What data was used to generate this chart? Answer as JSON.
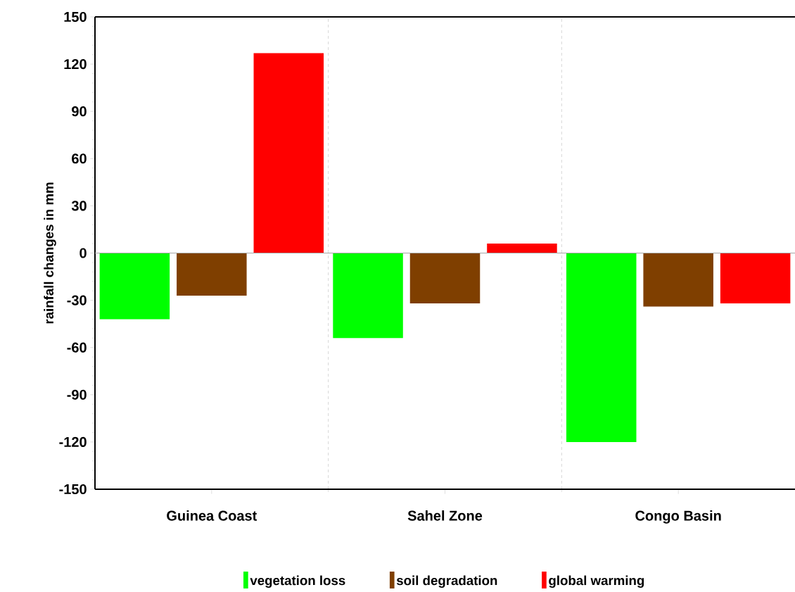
{
  "chart_data": {
    "type": "bar",
    "ylabel": "rainfall changes in mm",
    "categories": [
      "Guinea Coast",
      "Sahel Zone",
      "Congo Basin"
    ],
    "series": [
      {
        "name": "vegetation loss",
        "color": "#00ff00",
        "values": [
          -42,
          -54,
          -120
        ]
      },
      {
        "name": "soil degradation",
        "color": "#7f3f00",
        "values": [
          -27,
          -32,
          -34
        ]
      },
      {
        "name": "global warming",
        "color": "#ff0000",
        "values": [
          127,
          6,
          -32
        ]
      }
    ],
    "ylim": [
      -150,
      150
    ],
    "yticks": [
      -150,
      -120,
      -90,
      -60,
      -30,
      0,
      30,
      60,
      90,
      120,
      150
    ],
    "grid": "x",
    "legend": "bottom"
  }
}
